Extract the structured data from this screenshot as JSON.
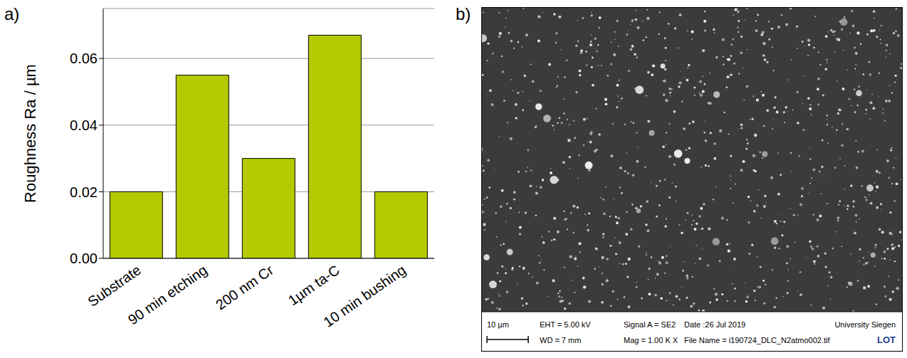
{
  "chart_data": {
    "type": "bar",
    "y_label": "Roughness Ra / µm",
    "categories": [
      "Substrate",
      "90 min etching",
      "200 nm Cr",
      "1µm ta-C",
      "10 min bushing"
    ],
    "values": [
      0.02,
      0.055,
      0.03,
      0.067,
      0.02
    ],
    "color": "#b5c900",
    "ylim": [
      0,
      0.075
    ],
    "yticks": [
      {
        "value": 0,
        "label": "0.00"
      },
      {
        "value": 0.02,
        "label": "0.02"
      },
      {
        "value": 0.04,
        "label": "0.04"
      },
      {
        "value": 0.06,
        "label": "0.06"
      }
    ],
    "grid": true
  },
  "panel_labels": [
    "a)",
    "b)"
  ],
  "micrograph": {
    "scale_bar": "10 µm",
    "info_rows": [
      [
        "EHT = 5.00 kV",
        "Signal A = SE2",
        "Date :26 Jul 2019",
        "University Siegen"
      ],
      [
        "WD = 7 mm",
        "Mag = 1.00 K X",
        "File Name = i190724_DLC_N2atmo002.tif",
        "LOT"
      ]
    ]
  }
}
